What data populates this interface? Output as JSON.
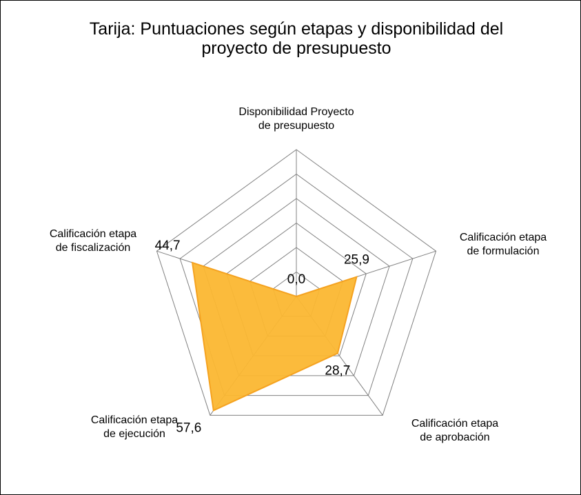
{
  "chart_data": {
    "type": "radar",
    "title": "Tarija: Puntuaciones según etapas y disponibilidad del proyecto de presupuesto",
    "categories": [
      [
        "Disponibilidad Proyecto",
        "de presupuesto"
      ],
      [
        "Calificación etapa",
        "de formulación"
      ],
      [
        "Calificación etapa",
        "de aprobación"
      ],
      [
        "Calificación etapa",
        "de ejecución"
      ],
      [
        "Calificación etapa",
        "de fiscalización"
      ]
    ],
    "values": [
      0,
      25.9,
      28.7,
      57.6,
      44.7
    ],
    "value_labels": [
      "0,0",
      "25,9",
      "28,7",
      "57,6",
      "44,7"
    ],
    "color": "#fbb731",
    "ylim": [
      0,
      60
    ],
    "yticks": [
      0,
      10,
      20,
      30,
      40,
      50,
      60
    ],
    "grid": true
  }
}
